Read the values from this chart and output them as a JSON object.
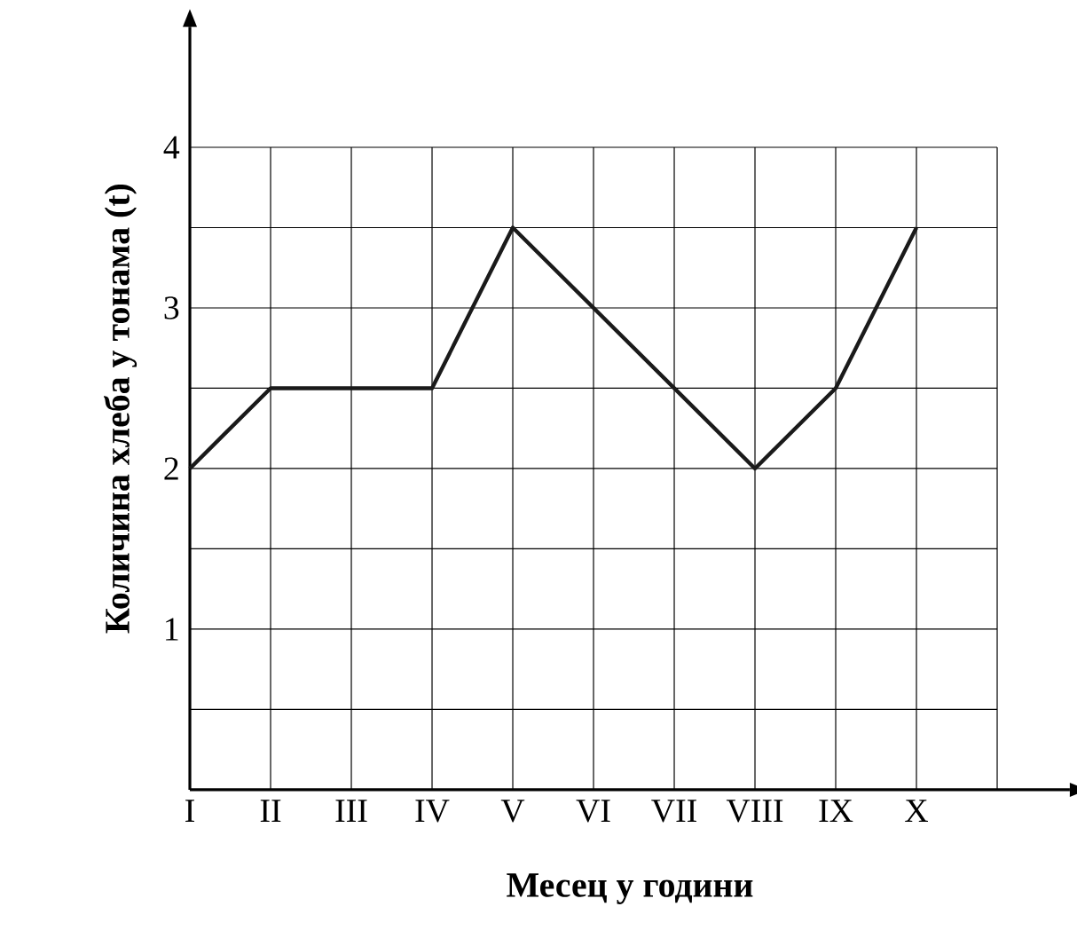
{
  "chart_data": {
    "type": "line",
    "xlabel": "Месец у години",
    "ylabel": "Количина хлеба у тонама (t)",
    "categories": [
      "I",
      "II",
      "III",
      "IV",
      "V",
      "VI",
      "VII",
      "VIII",
      "IX",
      "X"
    ],
    "series": [
      {
        "color": "#1a1a1a",
        "values": [
          2,
          2.5,
          2.5,
          2.5,
          3.5,
          3,
          2.5,
          2,
          2.5,
          3.5
        ]
      }
    ],
    "ylim": [
      0,
      4.75
    ],
    "yticks": [
      {
        "value": 0.5,
        "label": null
      },
      1,
      {
        "value": 1.5,
        "label": null
      },
      2,
      {
        "value": 2.5,
        "label": null
      },
      3,
      {
        "value": 3.5,
        "label": null
      },
      4
    ],
    "grid": true,
    "marker": "none",
    "line_style": "solid"
  }
}
